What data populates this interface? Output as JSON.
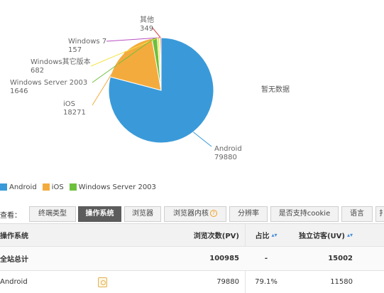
{
  "chart_data": {
    "type": "pie",
    "title": "",
    "slices": [
      {
        "name": "Android",
        "value": 79880,
        "color": "#3a9ad9"
      },
      {
        "name": "iOS",
        "value": 18271,
        "color": "#f4ab3d"
      },
      {
        "name": "Windows Server 2003",
        "value": 1646,
        "color": "#6dc03b"
      },
      {
        "name": "Windows其它版本",
        "value": 682,
        "color": "#f2e54a"
      },
      {
        "name": "Windows 7",
        "value": 157,
        "color": "#b84fc4"
      },
      {
        "name": "其他",
        "value": 349,
        "color": "#d94545"
      }
    ],
    "labels": [
      {
        "name": "其他",
        "value": "349"
      },
      {
        "name": "Windows 7",
        "value": "157"
      },
      {
        "name": "Windows其它版本",
        "value": "682"
      },
      {
        "name": "Windows Server 2003",
        "value": "1646"
      },
      {
        "name": "iOS",
        "value": "18271"
      },
      {
        "name": "Android",
        "value": "79880"
      }
    ],
    "legend": [
      "Android",
      "iOS",
      "Windows Server 2003"
    ],
    "legend_position": "bottom-left"
  },
  "empty_note": "暂无数据",
  "view_label": "查看：",
  "tabs": [
    {
      "label": "终端类型",
      "active": false
    },
    {
      "label": "操作系统",
      "active": true
    },
    {
      "label": "浏览器",
      "active": false
    },
    {
      "label": "浏览器内核",
      "active": false,
      "help": "?"
    },
    {
      "label": "分辨率",
      "active": false
    },
    {
      "label": "是否支持cookie",
      "active": false
    },
    {
      "label": "语言",
      "active": false
    },
    {
      "label": "扌",
      "active": false
    }
  ],
  "table": {
    "headers": {
      "os": "操作系统",
      "pv": "浏览次数(PV)",
      "ratio": "占比",
      "uv": "独立访客(UV)",
      "sort": "▴▾"
    },
    "total": {
      "os": "全站总计",
      "pv": "100985",
      "ratio": "-",
      "uv": "15002"
    },
    "rows": [
      {
        "os": "Android",
        "pv": "79880",
        "ratio": "79.1%",
        "uv": "11580"
      }
    ]
  }
}
